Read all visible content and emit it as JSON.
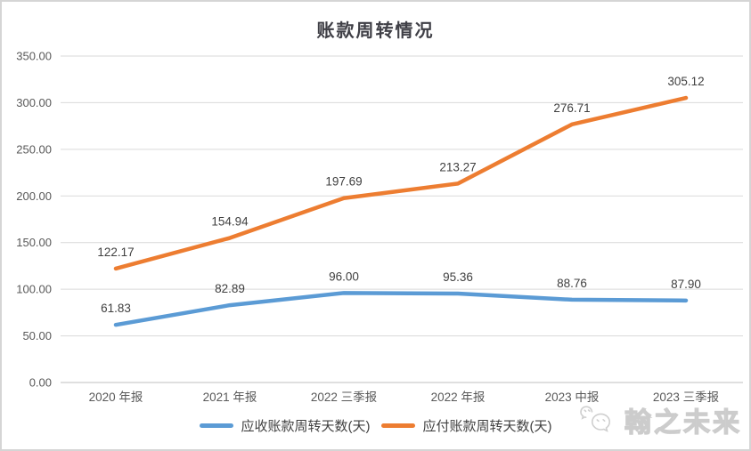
{
  "title": "账款周转情况",
  "chart_data": {
    "type": "line",
    "title": "账款周转情况",
    "categories": [
      "2020 年报",
      "2021 年报",
      "2022 三季报",
      "2022 年报",
      "2023 中报",
      "2023 三季报"
    ],
    "series": [
      {
        "name": "应收账款周转天数(天)",
        "color": "#5B9BD5",
        "values": [
          61.83,
          82.89,
          96.0,
          95.36,
          88.76,
          87.9
        ]
      },
      {
        "name": "应付账款周转天数(天)",
        "color": "#ED7D31",
        "values": [
          122.17,
          154.94,
          197.69,
          213.27,
          276.71,
          305.12
        ]
      }
    ],
    "ylim": [
      0,
      350
    ],
    "ytick_step": 50,
    "yticks": [
      "0.00",
      "50.00",
      "100.00",
      "150.00",
      "200.00",
      "250.00",
      "300.00",
      "350.00"
    ],
    "grid": true,
    "legend_position": "bottom",
    "data_labels": true
  },
  "watermark": {
    "text": "翰之未来",
    "icon": "wechat-icon"
  },
  "colors": {
    "gridline": "#D9D9D9",
    "axis_line": "#BFBFBF",
    "tick_label": "#595959",
    "data_label": "#404040",
    "title": "#3f3f46"
  }
}
